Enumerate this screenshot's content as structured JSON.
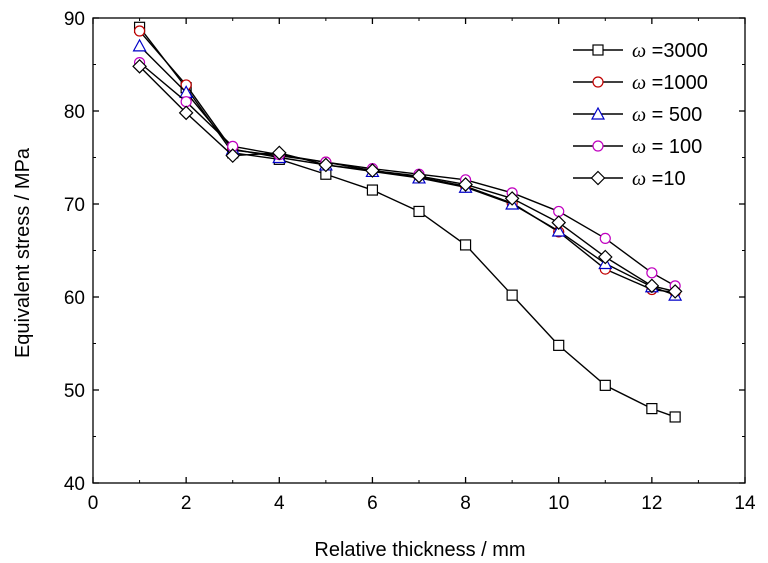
{
  "chart_data": {
    "type": "line",
    "title": "",
    "xlabel": "Relative thickness / mm",
    "ylabel": "Equivalent stress / MPa",
    "xlim": [
      0,
      14
    ],
    "ylim": [
      40,
      90
    ],
    "xticks": [
      0,
      2,
      4,
      6,
      8,
      10,
      12,
      14
    ],
    "yticks": [
      40,
      50,
      60,
      70,
      80,
      90
    ],
    "xtick_labels": [
      "0",
      "2",
      "4",
      "6",
      "8",
      "10",
      "12",
      "14"
    ],
    "ytick_labels": [
      "40",
      "50",
      "60",
      "70",
      "80",
      "90"
    ],
    "grid": false,
    "legend_position": "top-right",
    "x": [
      1,
      2,
      3,
      4,
      5,
      6,
      7,
      8,
      9,
      10,
      11,
      12,
      12.5
    ],
    "series": [
      {
        "name": "ω =3000",
        "omega": "ω",
        "value_label": " =3000",
        "marker": "square",
        "marker_color": "#000000",
        "values": [
          89.0,
          82.5,
          75.5,
          74.8,
          73.2,
          71.5,
          69.2,
          65.6,
          60.2,
          54.8,
          50.5,
          48.0,
          47.1
        ]
      },
      {
        "name": "ω =1000",
        "omega": "ω",
        "value_label": " =1000",
        "marker": "circle",
        "marker_color": "#c00000",
        "values": [
          88.6,
          82.8,
          75.8,
          75.2,
          74.5,
          73.6,
          72.9,
          71.9,
          70.1,
          67.0,
          63.0,
          60.8,
          60.5
        ]
      },
      {
        "name": "ω = 500",
        "omega": "ω",
        "value_label": " = 500",
        "marker": "triangle",
        "marker_color": "#0000c8",
        "values": [
          87.0,
          82.0,
          75.9,
          75.0,
          74.2,
          73.5,
          72.8,
          71.8,
          70.0,
          67.1,
          63.6,
          61.1,
          60.2
        ]
      },
      {
        "name": "ω = 100",
        "omega": "ω",
        "value_label": " = 100",
        "marker": "circle",
        "marker_color": "#c000c0",
        "values": [
          85.2,
          81.0,
          76.2,
          75.3,
          74.5,
          73.8,
          73.2,
          72.6,
          71.2,
          69.2,
          66.3,
          62.6,
          61.2
        ]
      },
      {
        "name": "ω =10",
        "omega": "ω",
        "value_label": " =10",
        "marker": "diamond",
        "marker_color": "#000000",
        "values": [
          84.8,
          79.8,
          75.2,
          75.5,
          74.2,
          73.6,
          73.0,
          72.1,
          70.6,
          68.0,
          64.3,
          61.2,
          60.6
        ]
      }
    ]
  }
}
